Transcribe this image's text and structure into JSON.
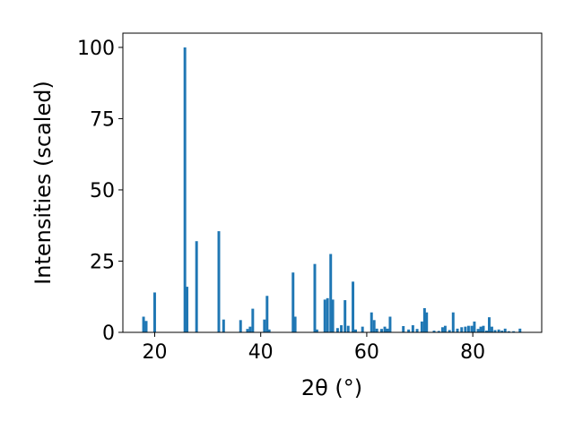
{
  "chart_data": {
    "type": "bar",
    "xlabel": "2θ (°)",
    "ylabel": "Intensities (scaled)",
    "xlim": [
      14,
      93
    ],
    "ylim": [
      0,
      105
    ],
    "xticks": [
      20,
      40,
      60,
      80
    ],
    "yticks": [
      0,
      25,
      50,
      75,
      100
    ],
    "bar_color": "#1f77b4",
    "grid": false,
    "x": [
      17.9,
      18.4,
      20.0,
      25.7,
      26.1,
      27.9,
      32.1,
      33.0,
      36.2,
      37.5,
      38.0,
      38.5,
      40.7,
      41.2,
      41.6,
      46.1,
      46.5,
      50.2,
      50.6,
      52.1,
      52.6,
      53.2,
      53.6,
      54.5,
      55.2,
      55.9,
      56.5,
      57.4,
      57.9,
      59.2,
      60.9,
      61.4,
      61.9,
      62.8,
      63.4,
      63.9,
      64.4,
      66.9,
      67.9,
      68.7,
      69.5,
      70.4,
      70.9,
      71.3,
      72.7,
      73.6,
      74.3,
      74.8,
      75.6,
      76.3,
      77.1,
      77.9,
      78.6,
      79.2,
      79.8,
      80.3,
      81.0,
      81.5,
      82.0,
      82.6,
      83.1,
      83.6,
      84.2,
      84.9,
      85.5,
      86.1,
      86.8,
      87.7,
      88.9
    ],
    "values": [
      5.5,
      4,
      14,
      100,
      16,
      32,
      35.5,
      4.5,
      4.3,
      1.2,
      2,
      8.3,
      4.5,
      12.8,
      1,
      21,
      5.5,
      24,
      1,
      11.5,
      12,
      27.5,
      11.5,
      1.5,
      2.5,
      11.3,
      2.3,
      17.8,
      1,
      2,
      7,
      4.3,
      1.3,
      1.2,
      2,
      1.3,
      5.5,
      2.2,
      1,
      2.5,
      1.2,
      3.8,
      8.5,
      7,
      0.6,
      0.5,
      1.8,
      2.3,
      0.8,
      7,
      1.3,
      1.8,
      2,
      2.3,
      2.3,
      3.8,
      1.2,
      2,
      2.3,
      0.6,
      5.3,
      2,
      0.8,
      1,
      0.6,
      1.3,
      0.4,
      0.4,
      1.3
    ]
  }
}
